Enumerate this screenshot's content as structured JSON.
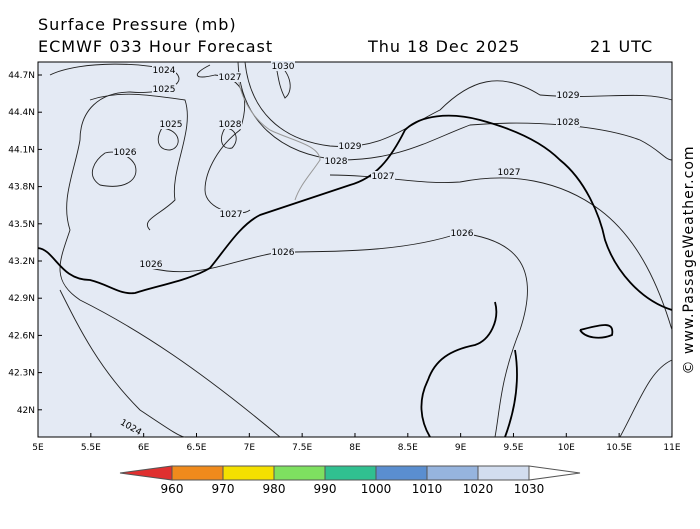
{
  "header": {
    "title": "Surface Pressure (mb)",
    "model": "ECMWF 033 Hour Forecast",
    "date": "Thu 18 Dec 2025",
    "time": "21 UTC"
  },
  "map": {
    "lat_labels": [
      "44.7N",
      "44.4N",
      "44.1N",
      "43.8N",
      "43.5N",
      "43.2N",
      "42.9N",
      "42.6N",
      "42.3N",
      "42N"
    ],
    "lon_labels": [
      "5E",
      "5.5E",
      "6E",
      "6.5E",
      "7E",
      "7.5E",
      "8E",
      "8.5E",
      "9E",
      "9.5E",
      "10E",
      "10.5E",
      "11E"
    ],
    "contour_labels": [
      "1024",
      "1025",
      "1027",
      "1030",
      "1025",
      "1028",
      "1026",
      "1029",
      "1028",
      "1027",
      "1029",
      "1028",
      "1027",
      "1027",
      "1026",
      "1026",
      "1026",
      "1024"
    ]
  },
  "colorbar": {
    "labels": [
      "960",
      "970",
      "980",
      "990",
      "1000",
      "1010",
      "1020",
      "1030"
    ]
  },
  "watermark": "© www.PassageWeather.com"
}
